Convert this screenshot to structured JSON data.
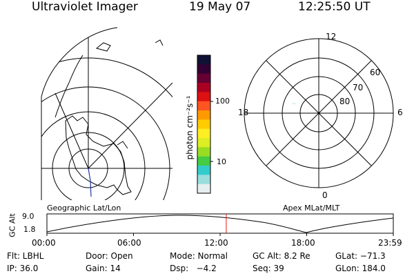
{
  "header": {
    "title": "Ultraviolet Imager",
    "date": "19 May 07",
    "time": "12:25:50 UT"
  },
  "colorbar": {
    "label": "photon cm⁻²s⁻¹",
    "ticks": [
      "100",
      "10"
    ],
    "colors": [
      "#111133",
      "#330033",
      "#660033",
      "#aa0022",
      "#dd1111",
      "#ff5522",
      "#ff9900",
      "#ffcc00",
      "#ffee22",
      "#ddee22",
      "#99dd22",
      "#44cc44",
      "#33cccc",
      "#99dddd",
      "#e6eef0"
    ]
  },
  "polar_plot": {
    "mlt_labels": {
      "top": "12",
      "left": "18",
      "right": "6",
      "bottom": "0"
    },
    "lat_labels": [
      "80",
      "70",
      "60"
    ]
  },
  "timeline": {
    "y_axis_label": "GC Alt",
    "y_ticks": [
      "9.0",
      "1.8"
    ],
    "left_caption": "Geographic Lat/Lon",
    "right_caption": "Apex MLat/MLT",
    "x_ticks": [
      "00:00",
      "06:00",
      "12:00",
      "18:00",
      "23:59"
    ],
    "current_time_fraction": 0.5178
  },
  "status": {
    "filter": "Flt: LBHL",
    "door": "Door: Open",
    "mode": "Mode: Normal",
    "gc_alt": "GC Alt: 8.2 Re",
    "glat": "GLat: −71.3",
    "ip": "IP: 36.0",
    "gain": "Gain: 14",
    "dsp": "Dsp:   −4.2",
    "seq": "Seq: 39",
    "glon": "GLon: 184.0"
  }
}
